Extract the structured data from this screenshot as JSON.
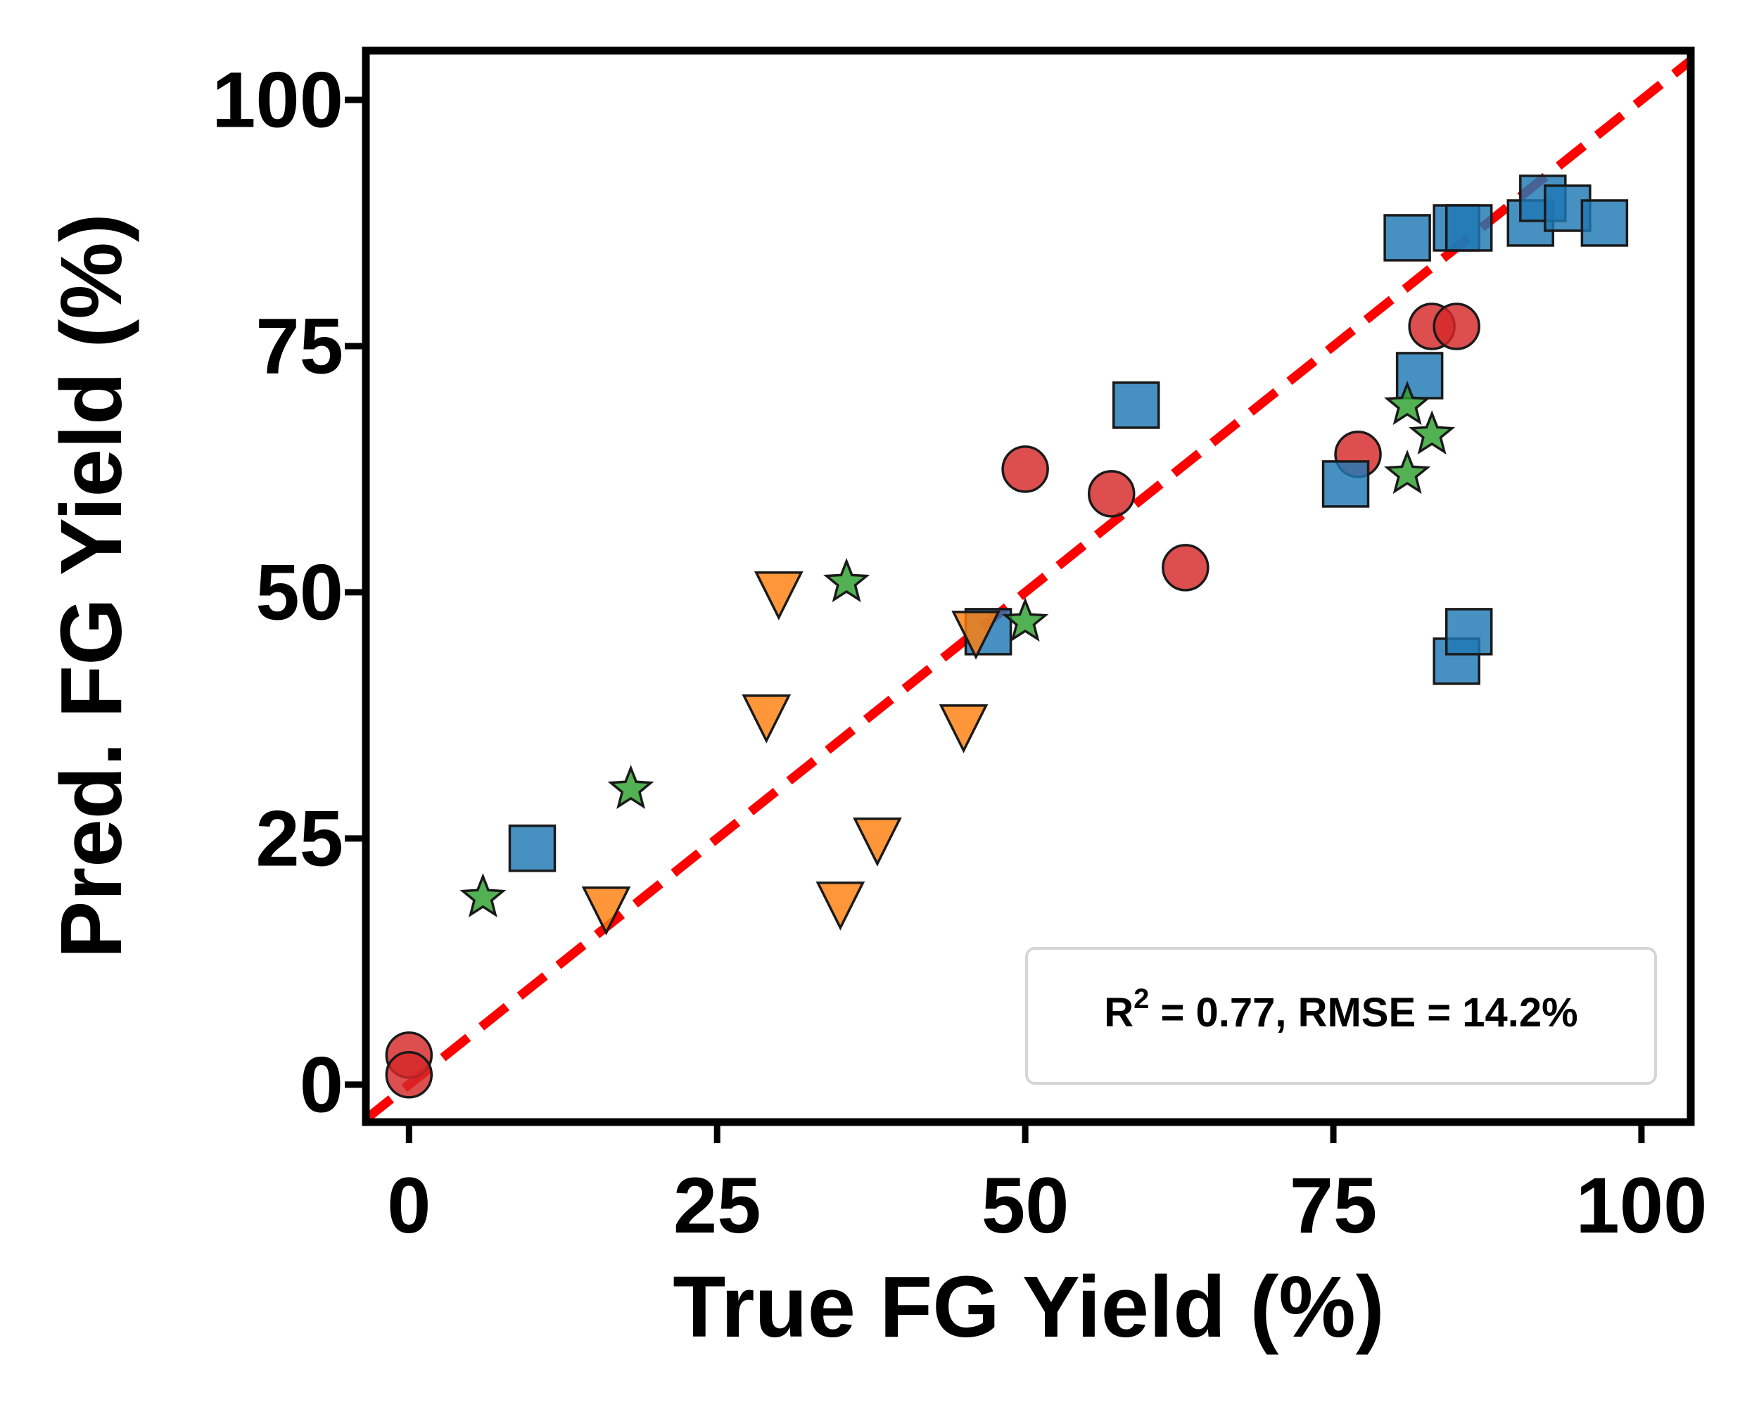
{
  "chart_data": {
    "type": "scatter",
    "xlabel": "True FG Yield (%)",
    "ylabel": "Pred. FG Yield (%)",
    "xlim": [
      -3.5,
      104
    ],
    "ylim": [
      -3.8,
      105
    ],
    "xticks": [
      "0",
      "25",
      "50",
      "75",
      "100"
    ],
    "yticks": [
      "0",
      "25",
      "50",
      "75",
      "100"
    ],
    "grid": false,
    "reference_line": {
      "style": "dashed",
      "color": "#ff0000",
      "equation": "y = x"
    },
    "annotation": {
      "r2_label": "R",
      "r2_superscript": "2",
      "text": " = 0.77, RMSE = 14.2%",
      "placement": "bottom-right"
    },
    "series": [
      {
        "marker": "circle",
        "color": "#d62728",
        "x": [
          0,
          0,
          50,
          57,
          63,
          77,
          83,
          85
        ],
        "y": [
          3,
          1,
          62.5,
          60,
          52.5,
          64,
          77,
          77
        ]
      },
      {
        "marker": "square",
        "color": "#1f77b4",
        "x": [
          10,
          47,
          59,
          76,
          82,
          81,
          85,
          86,
          91,
          92,
          94,
          97,
          85,
          86
        ],
        "y": [
          24,
          46,
          69,
          61,
          72,
          86,
          87,
          87,
          87.5,
          90,
          89,
          87.5,
          43,
          46
        ]
      },
      {
        "marker": "triangle-down",
        "color": "#ff7f0e",
        "x": [
          16,
          30,
          29,
          35,
          38,
          45,
          46
        ],
        "y": [
          18,
          50,
          37.5,
          18.5,
          25,
          36.5,
          46
        ]
      },
      {
        "marker": "star",
        "color": "#2ca02c",
        "x": [
          6,
          18,
          35.5,
          50,
          81,
          81,
          83
        ],
        "y": [
          19,
          30,
          51,
          47,
          69,
          62,
          66
        ]
      }
    ]
  }
}
